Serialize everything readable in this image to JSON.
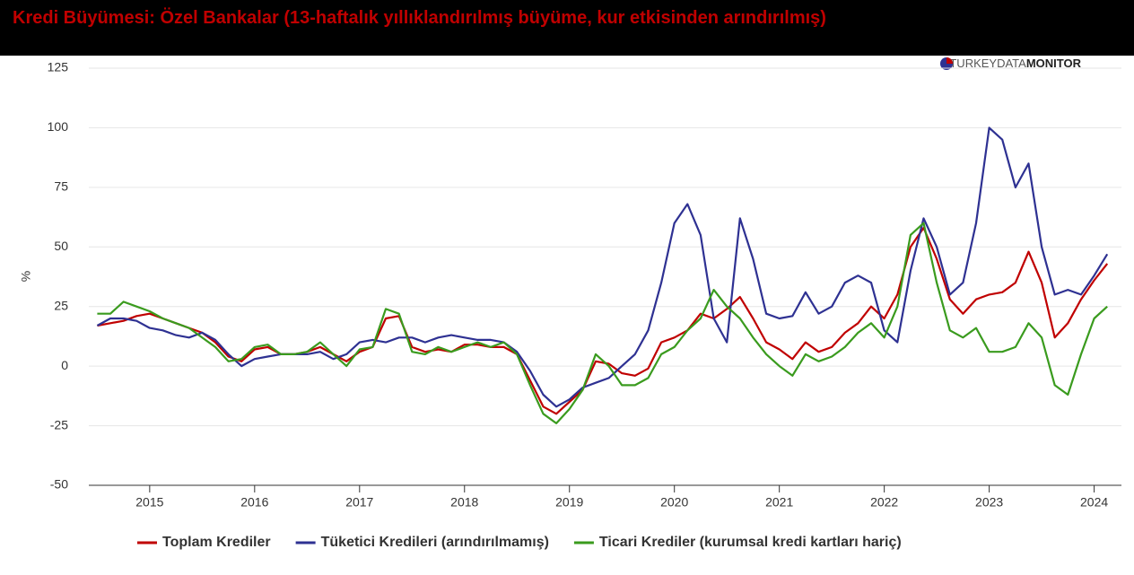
{
  "chart_data": {
    "type": "line",
    "title": "Kredi Büyümesi: Özel Bankalar (13-haftalık yıllıklandırılmış büyüme, kur etkisinden arındırılmış)",
    "logo_light": "TURKEYDATA",
    "logo_bold": "MONITOR",
    "ylabel": "%",
    "x": [
      2014.5,
      2014.625,
      2014.75,
      2014.875,
      2015,
      2015.125,
      2015.25,
      2015.375,
      2015.5,
      2015.625,
      2015.75,
      2015.875,
      2016,
      2016.125,
      2016.25,
      2016.375,
      2016.5,
      2016.625,
      2016.75,
      2016.875,
      2017,
      2017.125,
      2017.25,
      2017.375,
      2017.5,
      2017.625,
      2017.75,
      2017.875,
      2018,
      2018.125,
      2018.25,
      2018.375,
      2018.5,
      2018.625,
      2018.75,
      2018.875,
      2019,
      2019.125,
      2019.25,
      2019.375,
      2019.5,
      2019.625,
      2019.75,
      2019.875,
      2020,
      2020.125,
      2020.25,
      2020.375,
      2020.5,
      2020.625,
      2020.75,
      2020.875,
      2021,
      2021.125,
      2021.25,
      2021.375,
      2021.5,
      2021.625,
      2021.75,
      2021.875,
      2022,
      2022.125,
      2022.25,
      2022.375,
      2022.5,
      2022.625,
      2022.75,
      2022.875,
      2023,
      2023.125,
      2023.25,
      2023.375,
      2023.5,
      2023.625,
      2023.75,
      2023.875,
      2024,
      2024.125
    ],
    "series": [
      {
        "name": "Toplam Krediler",
        "color": "#c00000",
        "values": [
          17,
          18,
          19,
          21,
          22,
          20,
          18,
          16,
          14,
          10,
          4,
          2,
          7,
          8,
          5,
          5,
          6,
          8,
          5,
          2,
          6,
          8,
          20,
          21,
          8,
          6,
          7,
          6,
          9,
          9,
          8,
          8,
          5,
          -6,
          -17,
          -20,
          -15,
          -10,
          2,
          1,
          -3,
          -4,
          -1,
          10,
          12,
          15,
          22,
          20,
          24,
          29,
          20,
          10,
          7,
          3,
          10,
          6,
          8,
          14,
          18,
          25,
          20,
          30,
          50,
          58,
          45,
          28,
          22,
          28,
          30,
          31,
          35,
          48,
          35,
          12,
          18,
          28,
          36,
          43
        ]
      },
      {
        "name": "Tüketici Kredileri (arındırılmamış)",
        "color": "#2e3192",
        "values": [
          17,
          20,
          20,
          19,
          16,
          15,
          13,
          12,
          14,
          11,
          5,
          0,
          3,
          4,
          5,
          5,
          5,
          6,
          3,
          5,
          10,
          11,
          10,
          12,
          12,
          10,
          12,
          13,
          12,
          11,
          11,
          10,
          6,
          -2,
          -12,
          -17,
          -14,
          -9,
          -7,
          -5,
          0,
          5,
          15,
          35,
          60,
          68,
          55,
          20,
          10,
          62,
          45,
          22,
          20,
          21,
          31,
          22,
          25,
          35,
          38,
          35,
          15,
          10,
          40,
          62,
          50,
          30,
          35,
          60,
          100,
          95,
          75,
          85,
          50,
          30,
          32,
          30,
          38,
          47
        ]
      },
      {
        "name": "Ticari Krediler (kurumsal kredi kartları hariç)",
        "color": "#3a9b1e",
        "values": [
          22,
          22,
          27,
          25,
          23,
          20,
          18,
          16,
          12,
          8,
          2,
          3,
          8,
          9,
          5,
          5,
          6,
          10,
          5,
          0,
          7,
          8,
          24,
          22,
          6,
          5,
          8,
          6,
          8,
          10,
          8,
          10,
          5,
          -8,
          -20,
          -24,
          -18,
          -10,
          5,
          0,
          -8,
          -8,
          -5,
          5,
          8,
          15,
          20,
          32,
          25,
          20,
          12,
          5,
          0,
          -4,
          5,
          2,
          4,
          8,
          14,
          18,
          12,
          25,
          55,
          60,
          35,
          15,
          12,
          16,
          6,
          6,
          8,
          18,
          12,
          -8,
          -12,
          5,
          20,
          25
        ]
      }
    ],
    "xlim": [
      2014.42,
      2024.26
    ],
    "xticks": [
      2015,
      2016,
      2017,
      2018,
      2019,
      2020,
      2021,
      2022,
      2023,
      2024
    ],
    "ylim": [
      -50,
      125
    ],
    "yticks": [
      -50,
      -25,
      0,
      25,
      50,
      75,
      100,
      125
    ],
    "grid": true,
    "legend": "bottom"
  }
}
